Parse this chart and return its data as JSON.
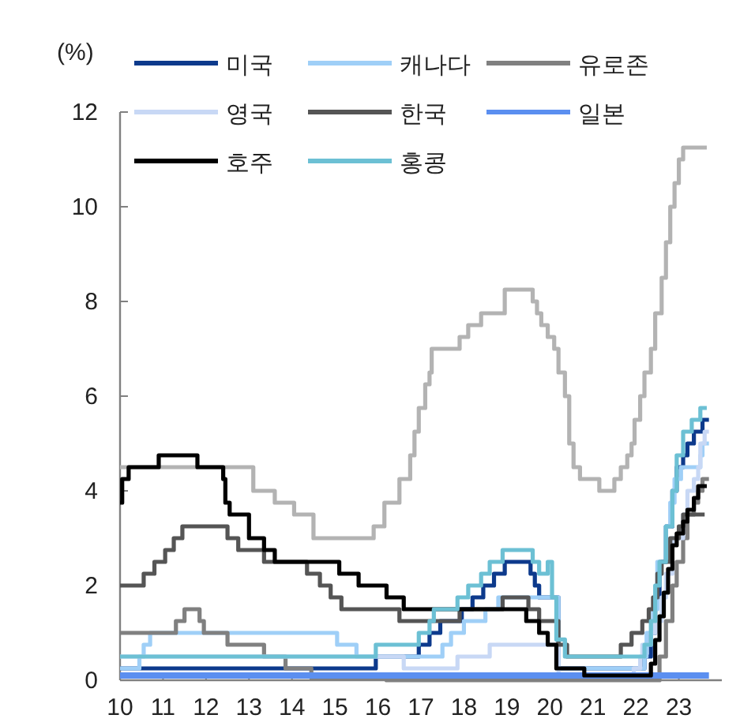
{
  "chart_data": {
    "type": "step",
    "ylabel": "(%)",
    "xlim": [
      10,
      24
    ],
    "ylim": [
      0,
      12
    ],
    "xticks": [
      10,
      11,
      12,
      13,
      14,
      15,
      16,
      17,
      18,
      19,
      20,
      21,
      22,
      23
    ],
    "yticks": [
      0,
      2,
      4,
      6,
      8,
      10,
      12
    ],
    "legend": "top left",
    "grid": false,
    "series": [
      {
        "color": "#b3b3b3",
        "x": [
          10,
          13.1,
          13.6,
          14.05,
          14.5,
          15.9,
          16.15,
          16.5,
          16.75,
          16.85,
          16.95,
          17.1,
          17.2,
          17.25,
          17.9,
          18.1,
          18.4,
          18.95,
          19.6,
          19.7,
          19.8,
          19.95,
          20.1,
          20.2,
          20.35,
          20.45,
          20.55,
          20.7,
          21.15,
          21.5,
          21.65,
          21.8,
          21.9,
          21.97,
          22.1,
          22.2,
          22.35,
          22.45,
          22.6,
          22.7,
          22.8,
          22.9,
          23.0,
          23.1,
          23.65
        ],
        "values": [
          4.5,
          4.0,
          3.75,
          3.5,
          3.0,
          3.25,
          3.75,
          4.25,
          4.75,
          5.25,
          5.75,
          6.25,
          6.5,
          7.0,
          7.25,
          7.5,
          7.75,
          8.25,
          8.0,
          7.75,
          7.5,
          7.25,
          7.0,
          6.5,
          6.0,
          5.0,
          4.5,
          4.25,
          4.0,
          4.25,
          4.5,
          4.75,
          5.0,
          5.5,
          6.0,
          6.5,
          7.0,
          7.75,
          8.5,
          9.25,
          10.0,
          10.5,
          11.0,
          11.25,
          11.25
        ]
      },
      {
        "name": "미국",
        "color": "#0d3a8c",
        "x": [
          10,
          15.95,
          16.95,
          17.2,
          17.45,
          17.95,
          18.2,
          18.45,
          18.7,
          18.95,
          19.55,
          19.65,
          19.75,
          20.2,
          22.2,
          22.35,
          22.45,
          22.55,
          22.7,
          22.85,
          22.95,
          23.1,
          23.2,
          23.35,
          23.55,
          23.7
        ],
        "values": [
          0.25,
          0.5,
          0.75,
          1.0,
          1.25,
          1.5,
          1.75,
          2.0,
          2.25,
          2.5,
          2.25,
          2.0,
          1.75,
          0.25,
          0.5,
          1.0,
          1.75,
          2.5,
          3.25,
          4.0,
          4.5,
          4.75,
          5.0,
          5.25,
          5.5,
          5.5
        ]
      },
      {
        "name": "캐나다",
        "color": "#9fcff7",
        "x": [
          10,
          10.45,
          10.55,
          10.7,
          15.05,
          15.5,
          17.5,
          17.7,
          18.0,
          18.5,
          18.8,
          20.2,
          22.2,
          22.25,
          22.4,
          22.5,
          22.7,
          22.8,
          22.9,
          23.05,
          23.5,
          23.55,
          23.7
        ],
        "values": [
          0.25,
          0.5,
          0.75,
          1.0,
          0.75,
          0.5,
          0.75,
          1.0,
          1.25,
          1.5,
          1.75,
          0.25,
          0.5,
          1.0,
          1.5,
          2.5,
          3.25,
          3.75,
          4.25,
          4.5,
          4.75,
          5.0,
          5.0
        ]
      },
      {
        "name": "유로존",
        "color": "#808080",
        "x": [
          10,
          11.3,
          11.5,
          11.85,
          11.95,
          12.5,
          13.35,
          13.85,
          14.45,
          16.2,
          22.55,
          22.7,
          22.85,
          22.95,
          23.1,
          23.2,
          23.35,
          23.45,
          23.55,
          23.7
        ],
        "values": [
          1.0,
          1.25,
          1.5,
          1.25,
          1.0,
          0.75,
          0.5,
          0.25,
          0.05,
          0.0,
          0.5,
          1.25,
          2.0,
          2.5,
          3.0,
          3.5,
          3.75,
          4.0,
          4.25,
          4.25
        ]
      },
      {
        "name": "영국",
        "color": "#c8d8f5",
        "x": [
          10,
          16.6,
          17.85,
          18.6,
          20.2,
          21.95,
          22.1,
          22.15,
          22.35,
          22.45,
          22.6,
          22.7,
          22.85,
          23.1,
          23.2,
          23.35,
          23.45,
          23.5,
          23.6,
          23.7
        ],
        "values": [
          0.5,
          0.25,
          0.5,
          0.75,
          0.1,
          0.25,
          0.5,
          0.75,
          1.0,
          1.25,
          1.75,
          2.25,
          3.0,
          3.5,
          4.0,
          4.25,
          4.5,
          5.0,
          5.25,
          5.25
        ]
      },
      {
        "name": "한국",
        "color": "#555555",
        "x": [
          10,
          10.55,
          10.8,
          11.05,
          11.25,
          11.45,
          12.5,
          12.75,
          13.35,
          14.35,
          14.65,
          14.9,
          15.15,
          16.5,
          17.9,
          18.9,
          19.5,
          19.75,
          20.2,
          20.4,
          21.65,
          21.9,
          22.15,
          22.3,
          22.4,
          22.5,
          22.6,
          22.8,
          23.0,
          23.1,
          23.6
        ],
        "values": [
          2.0,
          2.25,
          2.5,
          2.75,
          3.0,
          3.25,
          3.0,
          2.75,
          2.5,
          2.25,
          2.0,
          1.75,
          1.5,
          1.25,
          1.5,
          1.75,
          1.5,
          1.25,
          0.75,
          0.5,
          0.75,
          1.0,
          1.25,
          1.5,
          1.75,
          2.25,
          2.5,
          3.0,
          3.25,
          3.5,
          3.5
        ]
      },
      {
        "name": "일본",
        "color": "#5b8ff0",
        "x": [
          10,
          23.7
        ],
        "values": [
          0.1,
          0.1
        ]
      },
      {
        "name": "호주",
        "color": "#000000",
        "x": [
          10,
          10.05,
          10.2,
          10.9,
          11.8,
          12.4,
          12.45,
          12.55,
          13.0,
          13.35,
          13.6,
          15.1,
          15.55,
          16.2,
          16.6,
          19.45,
          19.75,
          19.95,
          20.15,
          20.8,
          22.35,
          22.45,
          22.55,
          22.65,
          22.75,
          22.85,
          22.95,
          23.1,
          23.2,
          23.35,
          23.45,
          23.65
        ],
        "values": [
          3.75,
          4.25,
          4.5,
          4.75,
          4.5,
          4.25,
          3.75,
          3.5,
          3.0,
          2.75,
          2.5,
          2.25,
          2.0,
          1.75,
          1.5,
          1.25,
          1.0,
          0.75,
          0.25,
          0.1,
          0.35,
          0.85,
          1.35,
          1.85,
          2.35,
          2.85,
          3.1,
          3.35,
          3.6,
          3.85,
          4.1,
          4.1
        ]
      },
      {
        "name": "홍콩",
        "color": "#6cc0d4",
        "x": [
          10,
          15.95,
          16.95,
          17.2,
          17.3,
          17.85,
          18.1,
          18.4,
          18.6,
          18.9,
          19.6,
          19.75,
          19.95,
          20.05,
          20.15,
          20.35,
          22.2,
          22.35,
          22.45,
          22.55,
          22.7,
          22.85,
          22.95,
          23.1,
          23.3,
          23.5,
          23.65
        ],
        "values": [
          0.5,
          0.75,
          1.0,
          1.25,
          1.5,
          1.75,
          2.0,
          2.25,
          2.5,
          2.75,
          2.5,
          2.25,
          2.5,
          1.75,
          0.86,
          0.5,
          0.75,
          1.25,
          2.0,
          2.5,
          3.25,
          4.0,
          4.75,
          5.25,
          5.5,
          5.75,
          5.75
        ]
      }
    ]
  }
}
